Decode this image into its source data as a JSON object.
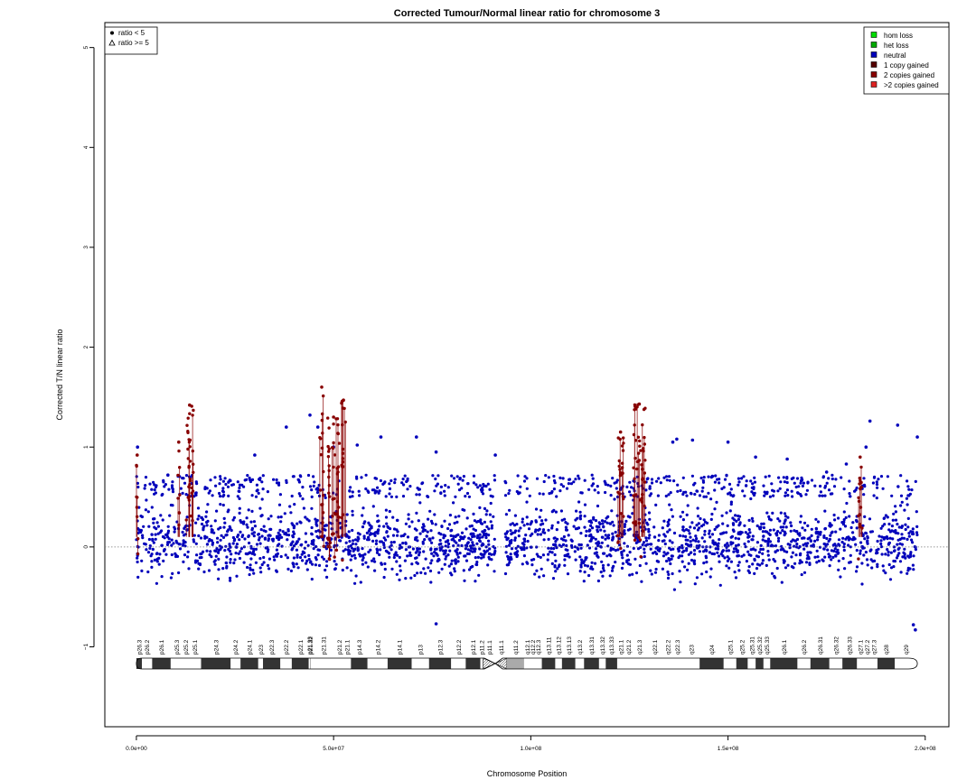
{
  "chart_data": {
    "type": "scatter",
    "title": "Corrected Tumour/Normal linear ratio for chromosome  3",
    "xlabel": "Chromosome Position",
    "ylabel": "Corrected T/N linear ratio",
    "xlim": [
      -8000000,
      206000000
    ],
    "ylim": [
      -1.8,
      5.25
    ],
    "x_ticks": [
      0,
      50000000,
      100000000,
      150000000,
      200000000
    ],
    "x_tick_labels": [
      "0.0e+00",
      "5.0e+07",
      "1.0e+08",
      "1.5e+08",
      "2.0e+08"
    ],
    "y_ticks": [
      -1,
      0,
      1,
      2,
      3,
      4,
      5
    ],
    "y_tick_labels": [
      "−1",
      "0",
      "1",
      "2",
      "3",
      "4",
      "5"
    ],
    "reference_line": 0,
    "centromere_gap": [
      91000000,
      93500000
    ],
    "chromosome_length": 198000000,
    "shape_legend": {
      "placement": "top-left",
      "items": [
        {
          "label": "ratio < 5",
          "shape": "circle"
        },
        {
          "label": "ratio >= 5",
          "shape": "triangle"
        }
      ]
    },
    "legend": {
      "placement": "top-right",
      "items": [
        {
          "label": "hom loss",
          "color": "#00dd00"
        },
        {
          "label": "het loss",
          "color": "#00aa00"
        },
        {
          "label": "neutral",
          "color": "#0000bb"
        },
        {
          "label": "1 copy gained",
          "color": "#550000"
        },
        {
          "label": "2 copies gained",
          "color": "#880000"
        },
        {
          "label": ">2 copies gained",
          "color": "#dd2222"
        }
      ]
    },
    "series": [
      {
        "status": "neutral",
        "color": "#0000bb",
        "segments": [
          {
            "start": 0,
            "end": 91000000,
            "low": -0.45,
            "high": 0.55
          },
          {
            "start": 93500000,
            "end": 198000000,
            "low": -0.45,
            "high": 0.55
          }
        ],
        "outliers": [
          [
            300000,
            1.0
          ],
          [
            8000000,
            0.72
          ],
          [
            30000000,
            0.92
          ],
          [
            38000000,
            1.2
          ],
          [
            44000000,
            1.32
          ],
          [
            46000000,
            1.2
          ],
          [
            50000000,
            1.0
          ],
          [
            56000000,
            1.02
          ],
          [
            62000000,
            1.1
          ],
          [
            71000000,
            1.1
          ],
          [
            76000000,
            0.95
          ],
          [
            76000000,
            -0.77
          ],
          [
            91000000,
            0.92
          ],
          [
            136000000,
            1.05
          ],
          [
            137000000,
            1.08
          ],
          [
            141000000,
            1.07
          ],
          [
            150000000,
            1.05
          ],
          [
            157000000,
            0.9
          ],
          [
            165000000,
            0.88
          ],
          [
            175000000,
            0.75
          ],
          [
            180000000,
            0.83
          ],
          [
            185000000,
            1.0
          ],
          [
            186000000,
            1.26
          ],
          [
            193000000,
            1.22
          ],
          [
            197000000,
            -0.78
          ],
          [
            197500000,
            -0.83
          ],
          [
            198000000,
            1.1
          ]
        ]
      },
      {
        "status": "2 copies gained",
        "color": "#880000",
        "regions": [
          {
            "start": 0,
            "end": 300000,
            "max": 0.92
          },
          {
            "start": 10500000,
            "end": 11000000,
            "max": 1.05
          },
          {
            "start": 12500000,
            "end": 14500000,
            "max": 1.42
          },
          {
            "start": 46500000,
            "end": 47500000,
            "max": 1.6
          },
          {
            "start": 48500000,
            "end": 51500000,
            "max": 1.3
          },
          {
            "start": 52000000,
            "end": 53000000,
            "max": 1.47
          },
          {
            "start": 122000000,
            "end": 123500000,
            "max": 1.15
          },
          {
            "start": 126000000,
            "end": 129000000,
            "max": 1.43
          },
          {
            "start": 183000000,
            "end": 184000000,
            "max": 0.9
          }
        ]
      }
    ],
    "ideogram": {
      "bands": [
        {
          "name": "p26.3",
          "start": 0,
          "end": 1400000,
          "stain": "gpos50"
        },
        {
          "name": "p26.2",
          "start": 1400000,
          "end": 4000000,
          "stain": "gneg"
        },
        {
          "name": "p26.1",
          "start": 4000000,
          "end": 8700000,
          "stain": "gpos50"
        },
        {
          "name": "p25.3",
          "start": 8700000,
          "end": 11800000,
          "stain": "gneg"
        },
        {
          "name": "p25.2",
          "start": 11800000,
          "end": 13300000,
          "stain": "gpos25"
        },
        {
          "name": "p25.1",
          "start": 13300000,
          "end": 16400000,
          "stain": "gneg"
        },
        {
          "name": "p24.3",
          "start": 16400000,
          "end": 23900000,
          "stain": "gpos100"
        },
        {
          "name": "p24.2",
          "start": 23900000,
          "end": 26400000,
          "stain": "gneg"
        },
        {
          "name": "p24.1",
          "start": 26400000,
          "end": 30900000,
          "stain": "gpos75"
        },
        {
          "name": "p23",
          "start": 30900000,
          "end": 32100000,
          "stain": "gneg"
        },
        {
          "name": "p22.3",
          "start": 32100000,
          "end": 36500000,
          "stain": "gpos50"
        },
        {
          "name": "p22.2",
          "start": 36500000,
          "end": 39400000,
          "stain": "gneg"
        },
        {
          "name": "p22.1",
          "start": 39400000,
          "end": 43700000,
          "stain": "gpos75"
        },
        {
          "name": "p21.33",
          "start": 43700000,
          "end": 44100000,
          "stain": "gneg"
        },
        {
          "name": "p21.32",
          "start": 44100000,
          "end": 44200000,
          "stain": "gpos50"
        },
        {
          "name": "p21.31",
          "start": 44200000,
          "end": 50600000,
          "stain": "gneg"
        },
        {
          "name": "p21.2",
          "start": 50600000,
          "end": 52300000,
          "stain": "gpos25"
        },
        {
          "name": "p21.1",
          "start": 52300000,
          "end": 54400000,
          "stain": "gneg"
        },
        {
          "name": "p14.3",
          "start": 54400000,
          "end": 58600000,
          "stain": "gpos50"
        },
        {
          "name": "p14.2",
          "start": 58600000,
          "end": 63700000,
          "stain": "gneg"
        },
        {
          "name": "p14.1",
          "start": 63700000,
          "end": 69800000,
          "stain": "gpos50"
        },
        {
          "name": "p13",
          "start": 69800000,
          "end": 74200000,
          "stain": "gneg"
        },
        {
          "name": "p12.3",
          "start": 74200000,
          "end": 79800000,
          "stain": "gpos75"
        },
        {
          "name": "p12.2",
          "start": 79800000,
          "end": 83500000,
          "stain": "gneg"
        },
        {
          "name": "p12.1",
          "start": 83500000,
          "end": 87200000,
          "stain": "gpos75"
        },
        {
          "name": "p11.2",
          "start": 87200000,
          "end": 87900000,
          "stain": "gneg"
        },
        {
          "name": "p11.1",
          "start": 87900000,
          "end": 91000000,
          "stain": "acen"
        },
        {
          "name": "q11.1",
          "start": 91000000,
          "end": 93900000,
          "stain": "acen"
        },
        {
          "name": "q11.2",
          "start": 93900000,
          "end": 98300000,
          "stain": "gvar"
        },
        {
          "name": "q12.1",
          "start": 98300000,
          "end": 100000000,
          "stain": "gneg"
        },
        {
          "name": "q12.2",
          "start": 100000000,
          "end": 100900000,
          "stain": "gpos25"
        },
        {
          "name": "q12.3",
          "start": 100900000,
          "end": 102800000,
          "stain": "gneg"
        },
        {
          "name": "q13.11",
          "start": 102800000,
          "end": 106200000,
          "stain": "gpos75"
        },
        {
          "name": "q13.12",
          "start": 106200000,
          "end": 107900000,
          "stain": "gneg"
        },
        {
          "name": "q13.13",
          "start": 107900000,
          "end": 111300000,
          "stain": "gpos50"
        },
        {
          "name": "q13.2",
          "start": 111300000,
          "end": 113500000,
          "stain": "gneg"
        },
        {
          "name": "q13.31",
          "start": 113500000,
          "end": 117300000,
          "stain": "gpos100"
        },
        {
          "name": "q13.32",
          "start": 117300000,
          "end": 119000000,
          "stain": "gneg"
        },
        {
          "name": "q13.33",
          "start": 119000000,
          "end": 121900000,
          "stain": "gpos75"
        },
        {
          "name": "q21.1",
          "start": 121900000,
          "end": 123800000,
          "stain": "gneg"
        },
        {
          "name": "q21.2",
          "start": 123800000,
          "end": 125800000,
          "stain": "gpos25"
        },
        {
          "name": "q21.3",
          "start": 125800000,
          "end": 129200000,
          "stain": "gneg"
        },
        {
          "name": "q22.1",
          "start": 129200000,
          "end": 133700000,
          "stain": "gpos25"
        },
        {
          "name": "q22.2",
          "start": 133700000,
          "end": 135700000,
          "stain": "gneg"
        },
        {
          "name": "q22.3",
          "start": 135700000,
          "end": 138700000,
          "stain": "gpos25"
        },
        {
          "name": "q23",
          "start": 138700000,
          "end": 142800000,
          "stain": "gneg"
        },
        {
          "name": "q24",
          "start": 142800000,
          "end": 148900000,
          "stain": "gpos100"
        },
        {
          "name": "q25.1",
          "start": 148900000,
          "end": 152100000,
          "stain": "gneg"
        },
        {
          "name": "q25.2",
          "start": 152100000,
          "end": 155000000,
          "stain": "gpos50"
        },
        {
          "name": "q25.31",
          "start": 155000000,
          "end": 157000000,
          "stain": "gneg"
        },
        {
          "name": "q25.32",
          "start": 157000000,
          "end": 159000000,
          "stain": "gpos50"
        },
        {
          "name": "q25.33",
          "start": 159000000,
          "end": 160700000,
          "stain": "gneg"
        },
        {
          "name": "q26.1",
          "start": 160700000,
          "end": 167600000,
          "stain": "gpos100"
        },
        {
          "name": "q26.2",
          "start": 167600000,
          "end": 170900000,
          "stain": "gneg"
        },
        {
          "name": "q26.31",
          "start": 170900000,
          "end": 175700000,
          "stain": "gpos75"
        },
        {
          "name": "q26.32",
          "start": 175700000,
          "end": 179000000,
          "stain": "gneg"
        },
        {
          "name": "q26.33",
          "start": 179000000,
          "end": 182700000,
          "stain": "gpos75"
        },
        {
          "name": "q27.1",
          "start": 182700000,
          "end": 184500000,
          "stain": "gneg"
        },
        {
          "name": "q27.2",
          "start": 184500000,
          "end": 186000000,
          "stain": "gpos25"
        },
        {
          "name": "q27.3",
          "start": 186000000,
          "end": 187900000,
          "stain": "gneg"
        },
        {
          "name": "q28",
          "start": 187900000,
          "end": 192300000,
          "stain": "gpos75"
        },
        {
          "name": "q29",
          "start": 192300000,
          "end": 198000000,
          "stain": "gneg"
        }
      ]
    }
  }
}
